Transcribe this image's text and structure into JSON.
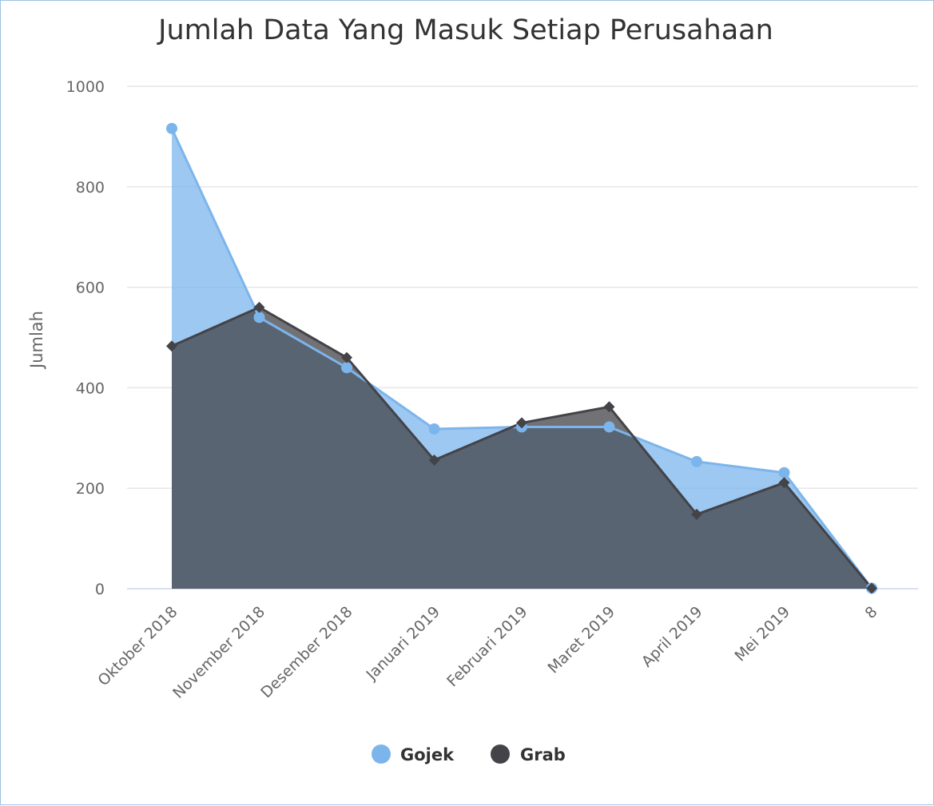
{
  "chart_data": {
    "type": "area",
    "title": "Jumlah Data Yang Masuk Setiap Perusahaan",
    "xlabel": "",
    "ylabel": "Jumlah",
    "ylim": [
      0,
      1000
    ],
    "yticks": [
      0,
      200,
      400,
      600,
      800,
      1000
    ],
    "categories": [
      "Oktober 2018",
      "November 2018",
      "Desember 2018",
      "Januari 2019",
      "Februari 2019",
      "Maret 2019",
      "April 2019",
      "Mei 2019",
      "8"
    ],
    "grid": true,
    "legend_position": "bottom-center",
    "series": [
      {
        "name": "Gojek",
        "marker": "circle",
        "color": "#7cb5ec",
        "values": [
          916,
          540,
          440,
          318,
          322,
          322,
          253,
          231,
          1
        ]
      },
      {
        "name": "Grab",
        "marker": "diamond",
        "color": "#434348",
        "values": [
          483,
          560,
          460,
          256,
          330,
          362,
          148,
          211,
          1
        ]
      }
    ]
  }
}
